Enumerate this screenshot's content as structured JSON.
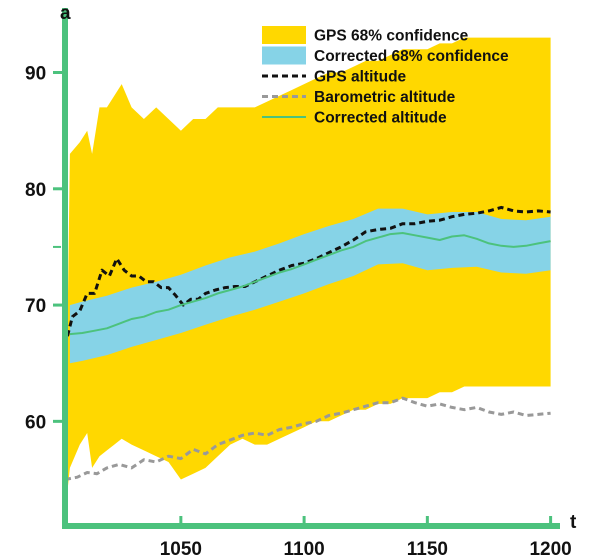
{
  "chart_data": {
    "type": "line",
    "title": "",
    "xlabel": "t",
    "ylabel": "a",
    "xlim": [
      1003,
      1203
    ],
    "ylim": [
      51,
      94
    ],
    "xticks": [
      1050,
      1100,
      1150,
      1200
    ],
    "yticks": [
      60,
      70,
      80,
      90
    ],
    "grid": false,
    "legend": "top-right",
    "colors": {
      "axis": "#4cc27d",
      "gps_band": "#ffd800",
      "corrected_band": "#86d3e7",
      "gps_line": "#111111",
      "baro_line": "#999999",
      "corrected_line": "#4cc27d"
    },
    "legend_labels": {
      "gps_band": "GPS 68% confidence",
      "corrected_band": "Corrected 68% confidence",
      "gps_line": "GPS altitude",
      "baro_line": "Barometric altitude",
      "corrected_line": "Corrected altitude"
    },
    "bands": [
      {
        "key": "gps_band",
        "x": [
          1003,
          1005,
          1009,
          1012,
          1014,
          1017,
          1020,
          1023,
          1026,
          1030,
          1035,
          1040,
          1045,
          1050,
          1055,
          1060,
          1065,
          1070,
          1075,
          1080,
          1085,
          1090,
          1095,
          1100,
          1105,
          1110,
          1115,
          1120,
          1125,
          1130,
          1135,
          1140,
          1145,
          1150,
          1155,
          1160,
          1165,
          1170,
          1175,
          1180,
          1185,
          1190,
          1195,
          1200
        ],
        "upper": [
          52.0,
          83.0,
          84.0,
          85.0,
          83.0,
          87.0,
          87.0,
          88.0,
          89.0,
          87.0,
          86.0,
          87.0,
          86.0,
          85.0,
          86.0,
          86.0,
          87.0,
          87.0,
          87.0,
          87.0,
          87.5,
          88.0,
          88.5,
          89.0,
          89.5,
          90.0,
          90.0,
          90.5,
          91.0,
          91.0,
          91.5,
          92.0,
          92.0,
          92.0,
          92.5,
          92.5,
          93.0,
          93.0,
          93.0,
          93.0,
          93.0,
          93.0,
          93.0,
          93.0
        ],
        "lower": [
          52.0,
          56.0,
          58.0,
          59.0,
          56.0,
          57.0,
          57.5,
          58.0,
          58.5,
          58.0,
          57.5,
          57.0,
          56.5,
          55.0,
          55.5,
          56.0,
          57.0,
          58.0,
          58.5,
          58.0,
          58.0,
          58.5,
          59.0,
          59.5,
          60.0,
          60.0,
          60.5,
          61.0,
          61.0,
          61.5,
          61.5,
          62.0,
          62.0,
          62.0,
          62.5,
          62.5,
          63.0,
          63.0,
          63.0,
          63.0,
          63.0,
          63.0,
          63.0,
          63.0
        ]
      },
      {
        "key": "corrected_band",
        "x": [
          1005,
          1010,
          1020,
          1030,
          1040,
          1050,
          1060,
          1070,
          1080,
          1090,
          1100,
          1110,
          1120,
          1130,
          1140,
          1150,
          1160,
          1170,
          1180,
          1190,
          1200
        ],
        "upper": [
          70.0,
          70.3,
          70.8,
          71.5,
          72.0,
          72.6,
          73.4,
          74.1,
          74.6,
          75.3,
          76.1,
          76.8,
          77.4,
          78.3,
          78.3,
          77.8,
          78.0,
          78.0,
          77.4,
          77.3,
          77.6
        ],
        "lower": [
          65.0,
          65.2,
          65.7,
          66.4,
          67.0,
          67.6,
          68.3,
          69.0,
          69.6,
          70.3,
          71.0,
          71.8,
          72.5,
          73.5,
          73.6,
          73.0,
          73.2,
          73.3,
          72.8,
          72.7,
          73.0
        ]
      }
    ],
    "series": [
      {
        "key": "gps_line",
        "x": [
          1003,
          1006,
          1009,
          1012,
          1015,
          1018,
          1021,
          1024,
          1027,
          1030,
          1033,
          1036,
          1039,
          1042,
          1045,
          1048,
          1051,
          1054,
          1057,
          1060,
          1064,
          1068,
          1072,
          1076,
          1080,
          1085,
          1090,
          1095,
          1100,
          1105,
          1110,
          1115,
          1120,
          1125,
          1130,
          1135,
          1140,
          1145,
          1150,
          1155,
          1160,
          1165,
          1170,
          1175,
          1180,
          1185,
          1190,
          1195,
          1200
        ],
        "y": [
          66.5,
          69.0,
          69.5,
          71.0,
          71.0,
          73.0,
          72.5,
          74.0,
          73.0,
          72.5,
          72.5,
          72.0,
          72.0,
          71.5,
          71.5,
          70.8,
          70.0,
          70.5,
          70.5,
          71.0,
          71.3,
          71.5,
          71.6,
          71.6,
          72.0,
          72.5,
          73.0,
          73.4,
          73.6,
          74.0,
          74.5,
          75.0,
          75.6,
          76.3,
          76.5,
          76.6,
          77.0,
          77.0,
          77.2,
          77.3,
          77.6,
          77.8,
          77.9,
          78.1,
          78.4,
          78.1,
          78.0,
          78.1,
          78.0
        ]
      },
      {
        "key": "baro_line",
        "x": [
          1003,
          1008,
          1012,
          1016,
          1020,
          1025,
          1030,
          1035,
          1040,
          1045,
          1050,
          1055,
          1060,
          1065,
          1070,
          1075,
          1080,
          1085,
          1090,
          1095,
          1100,
          1105,
          1110,
          1115,
          1120,
          1125,
          1130,
          1135,
          1140,
          1145,
          1150,
          1155,
          1160,
          1165,
          1170,
          1175,
          1180,
          1185,
          1190,
          1195,
          1200
        ],
        "y": [
          55.0,
          55.2,
          55.6,
          55.5,
          56.0,
          56.3,
          56.0,
          56.7,
          56.5,
          57.0,
          56.8,
          57.6,
          57.2,
          58.0,
          58.4,
          58.8,
          59.0,
          58.8,
          59.3,
          59.5,
          59.8,
          60.0,
          60.5,
          60.7,
          61.0,
          61.3,
          61.6,
          61.6,
          62.0,
          61.6,
          61.3,
          61.5,
          61.2,
          61.0,
          61.2,
          60.8,
          60.6,
          60.8,
          60.5,
          60.6,
          60.7
        ]
      },
      {
        "key": "corrected_line",
        "x": [
          1005,
          1010,
          1015,
          1020,
          1025,
          1030,
          1035,
          1040,
          1045,
          1050,
          1055,
          1060,
          1065,
          1070,
          1075,
          1080,
          1085,
          1090,
          1095,
          1100,
          1105,
          1110,
          1115,
          1120,
          1125,
          1130,
          1135,
          1140,
          1145,
          1150,
          1155,
          1160,
          1165,
          1170,
          1175,
          1180,
          1185,
          1190,
          1195,
          1200
        ],
        "y": [
          67.5,
          67.6,
          67.8,
          68.0,
          68.4,
          68.8,
          69.0,
          69.4,
          69.6,
          70.0,
          70.3,
          70.6,
          71.0,
          71.3,
          71.6,
          72.0,
          72.4,
          72.8,
          73.1,
          73.5,
          73.9,
          74.3,
          74.7,
          75.0,
          75.5,
          75.8,
          76.1,
          76.2,
          76.0,
          75.8,
          75.6,
          75.9,
          76.0,
          75.7,
          75.3,
          75.1,
          75.0,
          75.1,
          75.3,
          75.5
        ]
      }
    ]
  }
}
